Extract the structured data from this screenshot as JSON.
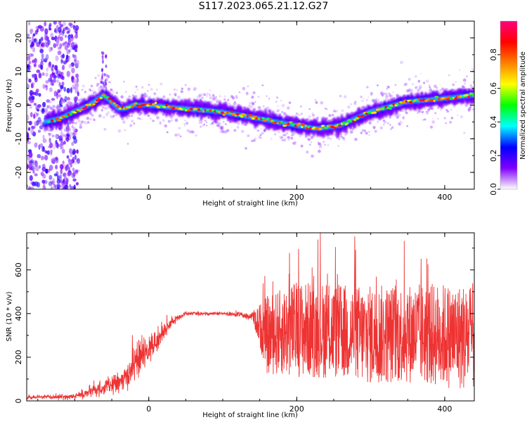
{
  "title": "S117.2023.065.21.12.G27",
  "chart_data": [
    {
      "type": "heatmap",
      "xlabel": "Height of straight line (km)",
      "ylabel": "Frequency (Hz)",
      "xlim": [
        -165,
        440
      ],
      "ylim": [
        -25,
        25
      ],
      "xticks": [
        0,
        200,
        400
      ],
      "yticks": [
        -20,
        -10,
        0,
        10,
        20
      ],
      "ridge": {
        "x": [
          -165,
          -140,
          -120,
          -100,
          -80,
          -60,
          -50,
          -40,
          -30,
          -20,
          0,
          50,
          100,
          150,
          200,
          230,
          260,
          300,
          350,
          400,
          440
        ],
        "y": [
          -5,
          -5,
          -4,
          -2,
          0,
          3,
          1,
          -1,
          -1,
          0,
          0,
          -1,
          -2,
          -4,
          -6,
          -7,
          -6,
          -2,
          1,
          2,
          3
        ]
      },
      "colorbar": {
        "label": "Normalized spectral amplitude",
        "range": [
          0,
          1
        ],
        "ticks": [
          "0.0",
          "0.2",
          "0.4",
          "0.6",
          "0.8"
        ],
        "colors": [
          "#ffffff",
          "#7f00ff",
          "#0000ff",
          "#00ffff",
          "#00ff00",
          "#ffff00",
          "#ff8000",
          "#ff0000",
          "#ff0080"
        ]
      }
    },
    {
      "type": "line",
      "xlabel": "Height of straight line (km)",
      "ylabel": "SNR (10 * v/v)",
      "xlim": [
        -165,
        440
      ],
      "ylim": [
        0,
        770
      ],
      "xticks": [
        0,
        200,
        400
      ],
      "yticks": [
        0,
        200,
        400,
        600
      ],
      "color": "#ee3333",
      "envelope": {
        "x": [
          -165,
          -100,
          -60,
          -30,
          -20,
          -10,
          10,
          30,
          50,
          100,
          140,
          160,
          200,
          250,
          300,
          350,
          400,
          440
        ],
        "mean": [
          15,
          20,
          60,
          100,
          180,
          200,
          270,
          360,
          400,
          400,
          390,
          300,
          330,
          320,
          300,
          310,
          300,
          290
        ],
        "spread": [
          8,
          15,
          40,
          60,
          90,
          90,
          60,
          25,
          10,
          8,
          20,
          180,
          220,
          220,
          230,
          230,
          240,
          250
        ]
      }
    }
  ]
}
